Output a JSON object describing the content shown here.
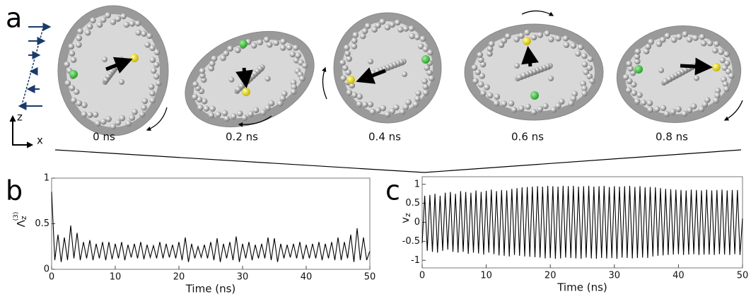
{
  "panel_a": {
    "label": "a",
    "times": [
      "0 ns",
      "0.2 ns",
      "0.4 ns",
      "0.6 ns",
      "0.8 ns"
    ],
    "axis_z": "z",
    "axis_x": "x"
  },
  "chart_data": [
    {
      "type": "line",
      "panel_label": "b",
      "xlabel": "Time (ns)",
      "ylabel": {
        "main": "Λ",
        "sub": "z",
        "sup": "(3)"
      },
      "color": "#000000",
      "xlim": [
        0,
        50
      ],
      "xticks": [
        0,
        10,
        20,
        30,
        40,
        50
      ],
      "ylim": [
        0,
        1
      ],
      "yticks": [
        0,
        0.5,
        1
      ],
      "x": [
        0,
        0.5,
        1,
        1.5,
        2,
        2.5,
        3,
        3.5,
        4,
        4.5,
        5,
        5.5,
        6,
        6.5,
        7,
        7.5,
        8,
        8.5,
        9,
        9.5,
        10,
        10.5,
        11,
        11.5,
        12,
        12.5,
        13,
        13.5,
        14,
        14.5,
        15,
        15.5,
        16,
        16.5,
        17,
        17.5,
        18,
        18.5,
        19,
        19.5,
        20,
        20.5,
        21,
        21.5,
        22,
        22.5,
        23,
        23.5,
        24,
        24.5,
        25,
        25.5,
        26,
        26.5,
        27,
        27.5,
        28,
        28.5,
        29,
        29.5,
        30,
        30.5,
        31,
        31.5,
        32,
        32.5,
        33,
        33.5,
        34,
        34.5,
        35,
        35.5,
        36,
        36.5,
        37,
        37.5,
        38,
        38.5,
        39,
        39.5,
        40,
        40.5,
        41,
        41.5,
        42,
        42.5,
        43,
        43.5,
        44,
        44.5,
        45,
        45.5,
        46,
        46.5,
        47,
        47.5,
        48,
        48.5,
        49,
        49.5,
        50
      ],
      "values": [
        0.85,
        0.1,
        0.38,
        0.08,
        0.35,
        0.1,
        0.48,
        0.12,
        0.4,
        0.1,
        0.3,
        0.12,
        0.32,
        0.1,
        0.28,
        0.12,
        0.3,
        0.1,
        0.3,
        0.11,
        0.28,
        0.12,
        0.3,
        0.1,
        0.27,
        0.13,
        0.28,
        0.12,
        0.3,
        0.11,
        0.27,
        0.13,
        0.26,
        0.12,
        0.3,
        0.12,
        0.28,
        0.13,
        0.27,
        0.12,
        0.3,
        0.1,
        0.35,
        0.08,
        0.28,
        0.12,
        0.25,
        0.13,
        0.27,
        0.12,
        0.3,
        0.1,
        0.34,
        0.08,
        0.28,
        0.12,
        0.3,
        0.1,
        0.36,
        0.08,
        0.28,
        0.12,
        0.3,
        0.1,
        0.27,
        0.12,
        0.28,
        0.12,
        0.35,
        0.1,
        0.34,
        0.08,
        0.28,
        0.12,
        0.27,
        0.13,
        0.28,
        0.12,
        0.3,
        0.11,
        0.27,
        0.12,
        0.28,
        0.12,
        0.3,
        0.1,
        0.28,
        0.12,
        0.3,
        0.1,
        0.35,
        0.1,
        0.3,
        0.12,
        0.38,
        0.08,
        0.45,
        0.1,
        0.35,
        0.1,
        0.2
      ]
    },
    {
      "type": "line",
      "panel_label": "c",
      "xlabel": "Time (ns)",
      "ylabel": {
        "main": "v",
        "sub": "z"
      },
      "color": "#000000",
      "xlim": [
        0,
        50
      ],
      "xticks": [
        0,
        10,
        20,
        30,
        40,
        50
      ],
      "ylim": [
        -1.2,
        1.2
      ],
      "yticks": [
        -1,
        -0.5,
        0,
        0.5,
        1
      ],
      "x": [
        0,
        0.4,
        0.8,
        1.2,
        1.6,
        2,
        2.4,
        2.8,
        3.2,
        3.6,
        4,
        4.4,
        4.8,
        5.2,
        5.6,
        6,
        6.4,
        6.8,
        7.2,
        7.6,
        8,
        8.4,
        8.8,
        9.2,
        9.6,
        10,
        10.4,
        10.8,
        11.2,
        11.6,
        12,
        12.4,
        12.8,
        13.2,
        13.6,
        14,
        14.4,
        14.8,
        15.2,
        15.6,
        16,
        16.4,
        16.8,
        17.2,
        17.6,
        18,
        18.4,
        18.8,
        19.2,
        19.6,
        20,
        20.4,
        20.8,
        21.2,
        21.6,
        22,
        22.4,
        22.8,
        23.2,
        23.6,
        24,
        24.4,
        24.8,
        25.2,
        25.6,
        26,
        26.4,
        26.8,
        27.2,
        27.6,
        28,
        28.4,
        28.8,
        29.2,
        29.6,
        30,
        30.4,
        30.8,
        31.2,
        31.6,
        32,
        32.4,
        32.8,
        33.2,
        33.6,
        34,
        34.4,
        34.8,
        35.2,
        35.6,
        36,
        36.4,
        36.8,
        37.2,
        37.6,
        38,
        38.4,
        38.8,
        39.2,
        39.6,
        40,
        40.4,
        40.8,
        41.2,
        41.6,
        42,
        42.4,
        42.8,
        43.2,
        43.6,
        44,
        44.4,
        44.8,
        45.2,
        45.6,
        46,
        46.4,
        46.8,
        47.2,
        47.6,
        48,
        48.4,
        48.8,
        49.2,
        49.6,
        50
      ],
      "values": [
        -0.55,
        0.7,
        -0.75,
        0.72,
        -0.78,
        0.75,
        -0.8,
        0.7,
        -0.75,
        0.78,
        -0.72,
        0.8,
        -0.78,
        0.75,
        -0.8,
        0.82,
        -0.78,
        0.8,
        -0.83,
        0.78,
        -0.8,
        0.84,
        -0.82,
        0.8,
        -0.85,
        0.83,
        -0.8,
        0.86,
        -0.84,
        0.82,
        -0.87,
        0.85,
        -0.88,
        0.84,
        -0.9,
        0.88,
        -0.86,
        0.9,
        -0.88,
        0.92,
        -0.9,
        0.93,
        -0.91,
        0.94,
        -0.92,
        0.95,
        -0.93,
        0.94,
        -0.95,
        0.96,
        -0.94,
        0.95,
        -0.96,
        0.94,
        -0.95,
        0.96,
        -0.93,
        0.95,
        -0.94,
        0.96,
        -0.95,
        0.94,
        -0.96,
        0.95,
        -0.93,
        0.96,
        -0.95,
        0.94,
        -0.96,
        0.95,
        -0.94,
        0.96,
        -0.95,
        0.93,
        -0.94,
        0.95,
        -0.96,
        0.94,
        -0.93,
        0.95,
        -0.94,
        0.96,
        -0.95,
        0.93,
        -0.94,
        0.95,
        -0.93,
        0.92,
        -0.94,
        0.93,
        -0.9,
        0.92,
        -0.88,
        0.9,
        -0.87,
        0.88,
        -0.86,
        0.87,
        -0.85,
        0.86,
        -0.84,
        0.85,
        -0.86,
        0.84,
        -0.85,
        0.86,
        -0.84,
        0.85,
        -0.86,
        0.84,
        -0.85,
        0.86,
        -0.85,
        0.84,
        -0.86,
        0.85,
        -0.84,
        0.86,
        -0.85,
        0.84,
        -0.86,
        0.85,
        -0.84,
        0.85,
        -0.86,
        0.1
      ]
    }
  ]
}
